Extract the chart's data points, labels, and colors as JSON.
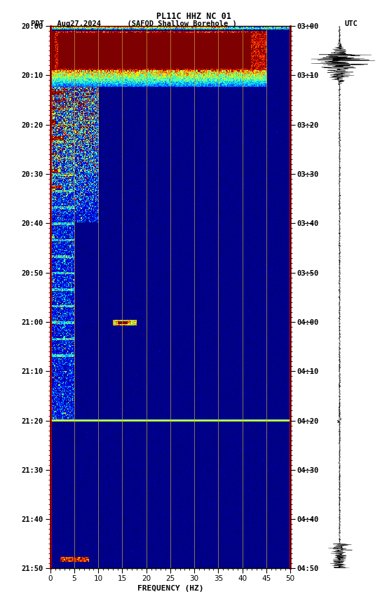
{
  "title_line1": "PL11C HHZ NC 01",
  "title_left": "PDT   Aug27,2024      (SAFOD Shallow Borehole )",
  "title_right": "UTC",
  "xlabel": "FREQUENCY (HZ)",
  "freq_min": 0,
  "freq_max": 50,
  "ytick_pdt": [
    "20:00",
    "20:10",
    "20:20",
    "20:30",
    "20:40",
    "20:50",
    "21:00",
    "21:10",
    "21:20",
    "21:30",
    "21:40",
    "21:50"
  ],
  "ytick_utc": [
    "03:00",
    "03:10",
    "03:20",
    "03:30",
    "03:40",
    "03:50",
    "04:00",
    "04:10",
    "04:20",
    "04:30",
    "04:40",
    "04:50"
  ],
  "xticks_major": [
    0,
    5,
    10,
    15,
    20,
    25,
    30,
    35,
    40,
    45,
    50
  ],
  "bg_color": "#00008B",
  "colormap": "jet",
  "grid_color": "#c8a832",
  "grid_alpha": 0.7,
  "tick_minutes": [
    0,
    10,
    20,
    30,
    40,
    50,
    60,
    70,
    80,
    90,
    100,
    110
  ]
}
